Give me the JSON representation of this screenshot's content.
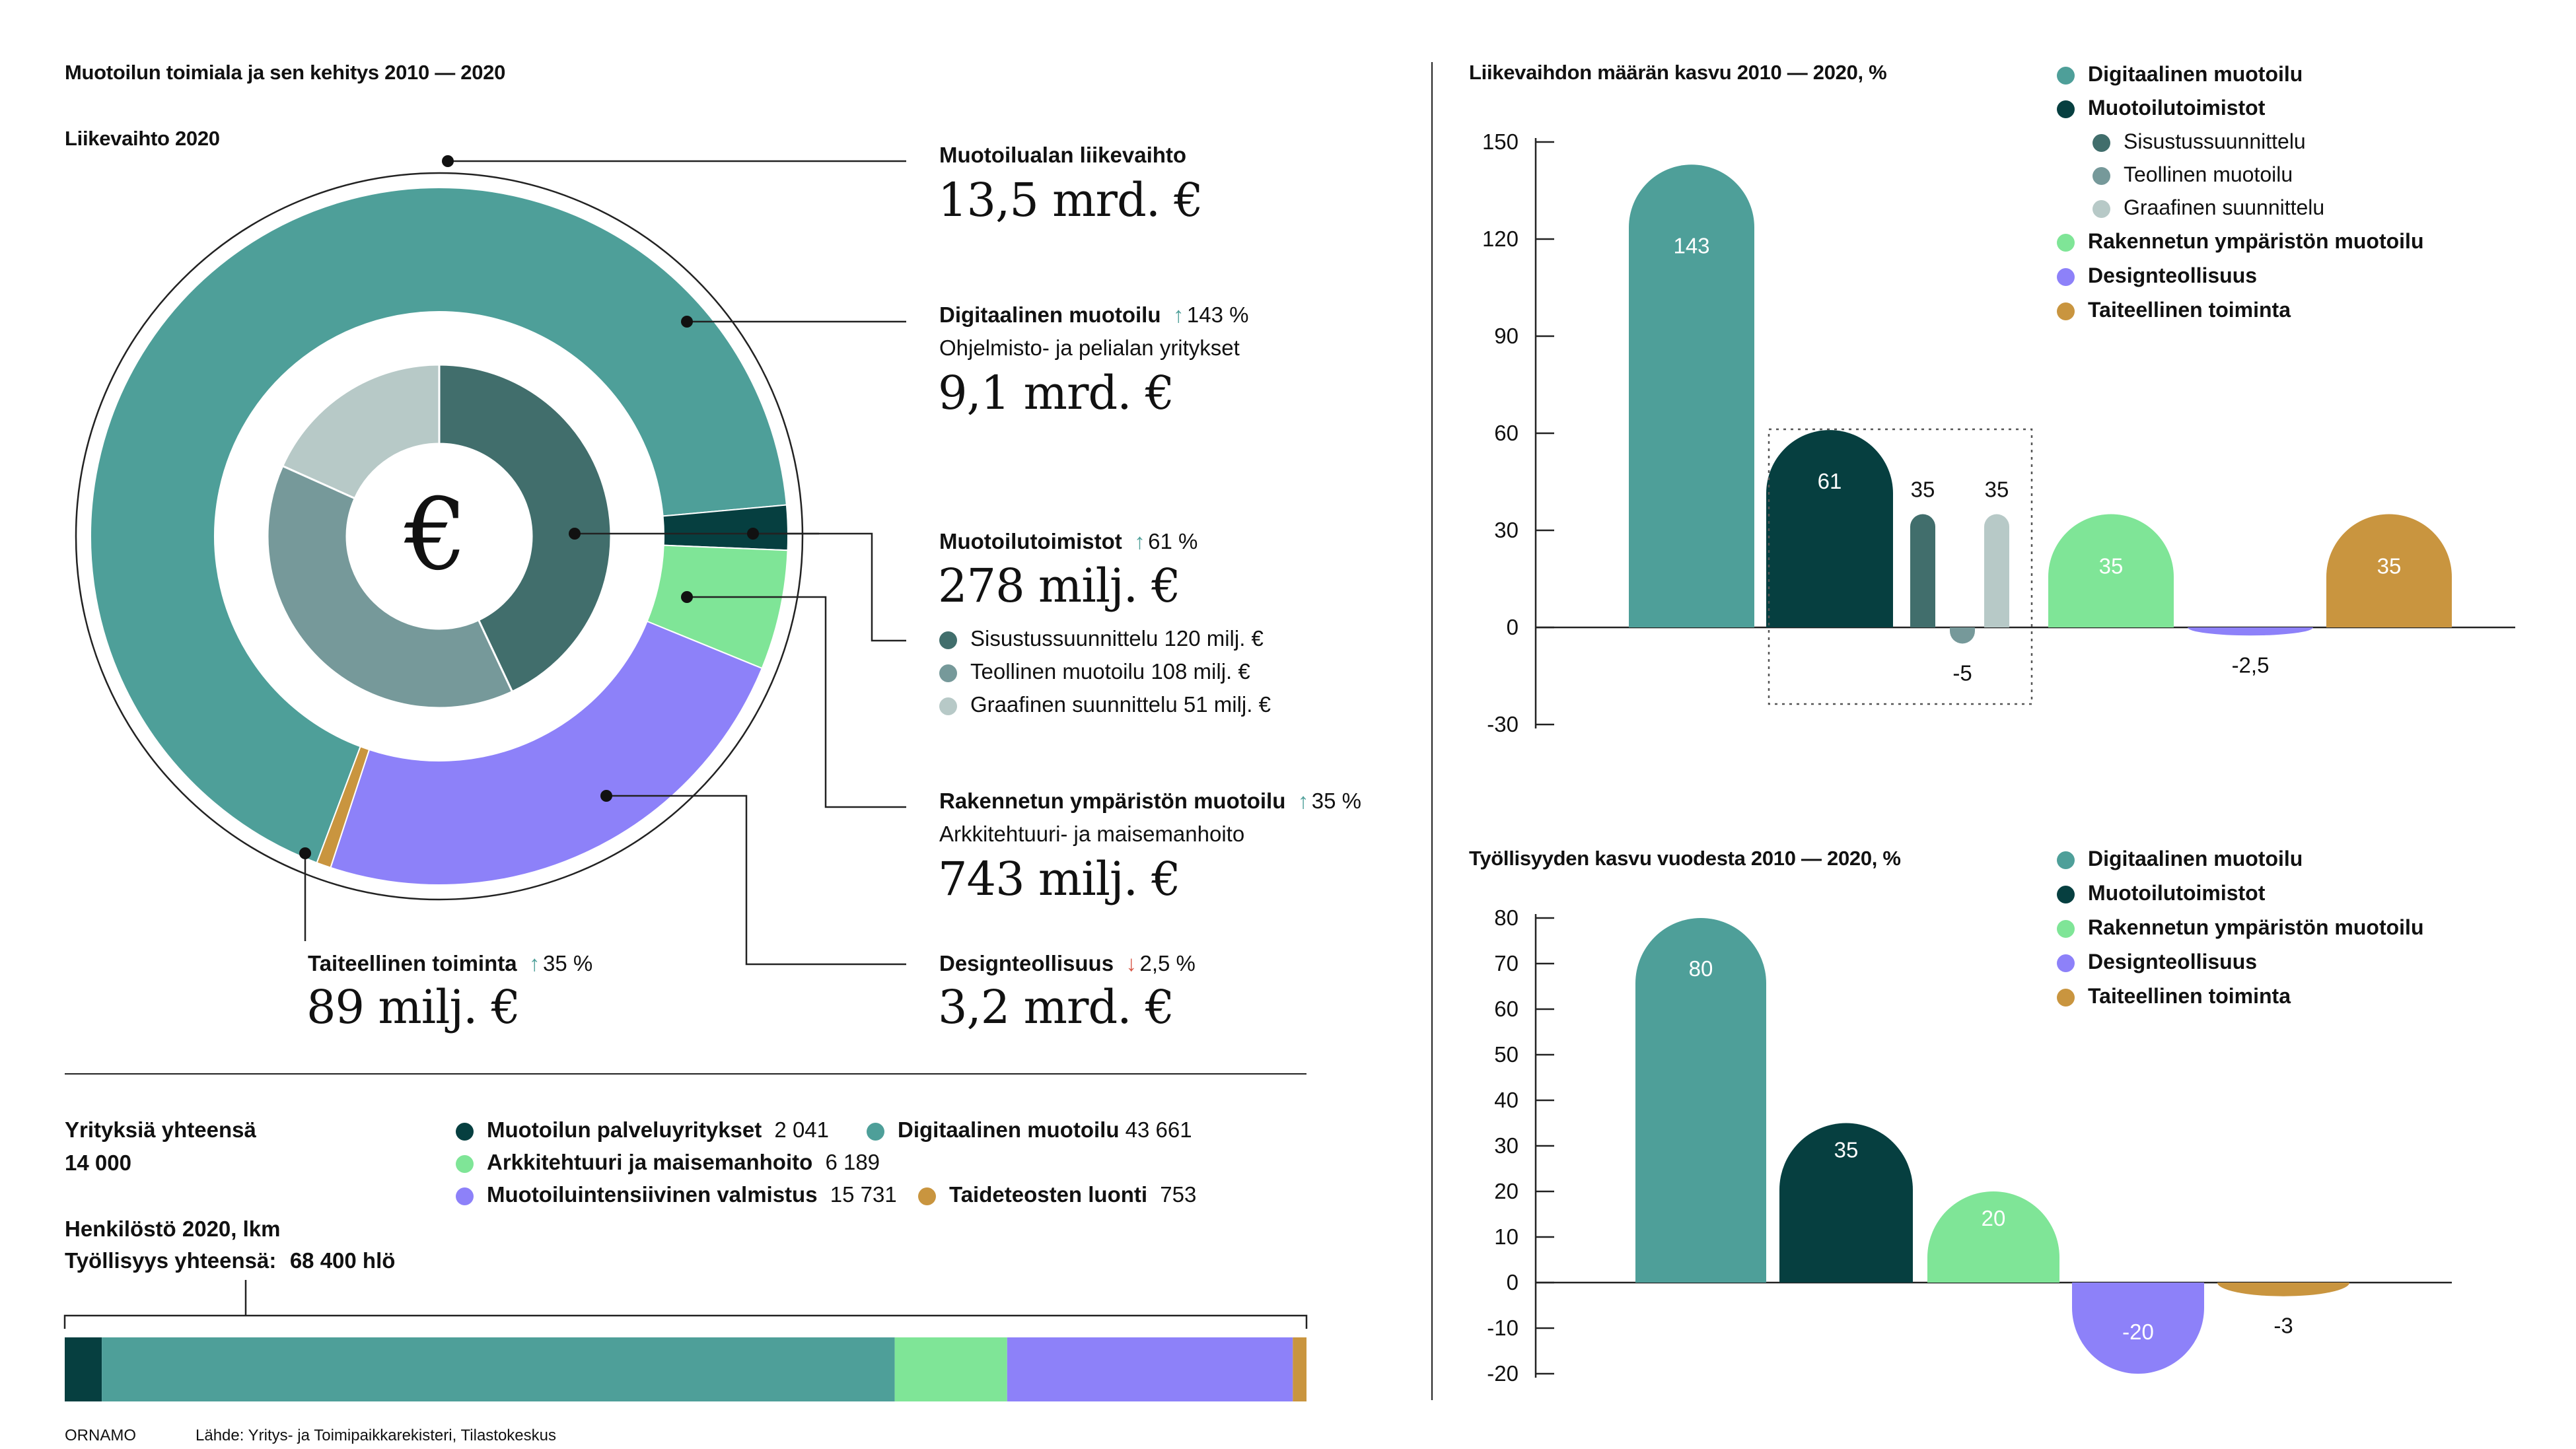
{
  "colors": {
    "digital": "#4e9f99",
    "offices": "#063f40",
    "interior": "#416e6c",
    "industrial": "#76999a",
    "graphic": "#b7c9c7",
    "built": "#7fe597",
    "industry": "#8d81f9",
    "artistic": "#c9953f"
  },
  "header": {
    "title": "Muotoilun toimiala ja sen kehitys  2010 — 2020",
    "subtitle": "Liikevaihto 2020"
  },
  "donut": {
    "center_symbol": "€",
    "total_label": "Muotoilualan liikevaihto",
    "total_value": "13,5 mrd. €",
    "digital": {
      "label": "Digitaalinen muotoilu",
      "arrow": "↑",
      "change": "143 %",
      "desc": "Ohjelmisto- ja pelialan yritykset",
      "value": "9,1 mrd. €"
    },
    "offices": {
      "label": "Muotoilutoimistot",
      "arrow": "↑",
      "change": "61 %",
      "value": "278 milj. €",
      "breakdown": [
        {
          "label": "Sisustussuunnittelu 120 milj. €"
        },
        {
          "label": "Teollinen muotoilu 108 milj. €"
        },
        {
          "label": "Graafinen suunnittelu 51 milj. €"
        }
      ]
    },
    "built": {
      "label": "Rakennetun ympäristön muotoilu",
      "arrow": "↑",
      "change": "35 %",
      "desc": "Arkkitehtuuri- ja maisemanhoito",
      "value": "743 milj. €"
    },
    "industry": {
      "label": "Designteollisuus",
      "arrow": "↓",
      "change": "2,5 %",
      "value": "3,2 mrd. €"
    },
    "artistic": {
      "label": "Taiteellinen toiminta",
      "arrow": "↑",
      "change": "35 %",
      "value": "89 milj. €"
    }
  },
  "companies": {
    "label": "Yrityksiä yhteensä",
    "value": "14 000",
    "legend": [
      {
        "name": "Muotoilun palveluyritykset",
        "value": "2 041"
      },
      {
        "name": "Digitaalinen muotoilu",
        "value": "43 661"
      },
      {
        "name": "Arkkitehtuuri ja maisemanhoito",
        "value": "6 189"
      },
      {
        "name": "Muotoiluintensiivinen valmistus",
        "value": "15 731"
      },
      {
        "name": "Taideteosten luonti",
        "value": "753"
      }
    ]
  },
  "staff": {
    "label": "Henkilöstö 2020, lkm",
    "total_label": "Työllisyys yhteensä:",
    "total_value": "68 400 hlö",
    "bar_shares": [
      2041,
      43661,
      6189,
      15731,
      753
    ]
  },
  "footer": {
    "brand": "ORNAMO",
    "source": "Lähde: Yritys- ja Toimipaikkarekisteri, Tilastokeskus"
  },
  "chart_data": [
    {
      "type": "pie",
      "title": "Liikevaihto 2020",
      "outer_ring": [
        {
          "name": "Digitaalinen muotoilu",
          "value": 9.1
        },
        {
          "name": "Muotoilutoimistot",
          "value": 0.278
        },
        {
          "name": "Rakennetun ympäristön muotoilu",
          "value": 0.743
        },
        {
          "name": "Designteollisuus",
          "value": 3.2
        },
        {
          "name": "Taiteellinen toiminta",
          "value": 0.089
        }
      ],
      "inner_ring": [
        {
          "name": "Sisustussuunnittelu",
          "value": 120
        },
        {
          "name": "Teollinen muotoilu",
          "value": 108
        },
        {
          "name": "Graafinen suunnittelu",
          "value": 51
        }
      ]
    },
    {
      "type": "bar",
      "title": "Liikevaihdon määrän kasvu  2010 — 2020, %",
      "ylim": [
        -30,
        150
      ],
      "yticks": [
        150,
        120,
        90,
        60,
        30,
        0,
        -30
      ],
      "legend": [
        {
          "name": "Digitaalinen muotoilu",
          "level": 0
        },
        {
          "name": "Muotoilutoimistot",
          "level": 0
        },
        {
          "name": "Sisustussuunnittelu",
          "level": 1
        },
        {
          "name": "Teollinen muotoilu",
          "level": 1
        },
        {
          "name": "Graafinen suunnittelu",
          "level": 1
        },
        {
          "name": "Rakennetun ympäristön muotoilu",
          "level": 0
        },
        {
          "name": "Designteollisuus",
          "level": 0
        },
        {
          "name": "Taiteellinen toiminta",
          "level": 0
        }
      ],
      "bars": [
        {
          "name": "Digitaalinen muotoilu",
          "value": 143,
          "label": "143"
        },
        {
          "name": "Muotoilutoimistot",
          "value": 61,
          "label": "61"
        },
        {
          "name": "Sisustussuunnittelu",
          "value": 35,
          "label": "35"
        },
        {
          "name": "Teollinen muotoilu",
          "value": -5,
          "label": "-5"
        },
        {
          "name": "Graafinen suunnittelu",
          "value": 35,
          "label": "35"
        },
        {
          "name": "Rakennetun ympäristön muotoilu",
          "value": 35,
          "label": "35"
        },
        {
          "name": "Designteollisuus",
          "value": -2.5,
          "label": "-2,5"
        },
        {
          "name": "Taiteellinen toiminta",
          "value": 35,
          "label": "35"
        }
      ]
    },
    {
      "type": "bar",
      "title": "Työllisyyden kasvu vuodesta  2010 — 2020, %",
      "ylim": [
        -20,
        80
      ],
      "yticks": [
        80,
        70,
        60,
        50,
        40,
        30,
        20,
        10,
        0,
        -10,
        -20
      ],
      "legend": [
        {
          "name": "Digitaalinen muotoilu"
        },
        {
          "name": "Muotoilutoimistot"
        },
        {
          "name": "Rakennetun ympäristön muotoilu"
        },
        {
          "name": "Designteollisuus"
        },
        {
          "name": "Taiteellinen toiminta"
        }
      ],
      "bars": [
        {
          "name": "Digitaalinen muotoilu",
          "value": 80,
          "label": "80"
        },
        {
          "name": "Muotoilutoimistot",
          "value": 35,
          "label": "35"
        },
        {
          "name": "Rakennetun ympäristön muotoilu",
          "value": 20,
          "label": "20"
        },
        {
          "name": "Designteollisuus",
          "value": -20,
          "label": "-20"
        },
        {
          "name": "Taiteellinen toiminta",
          "value": -3,
          "label": "-3"
        }
      ]
    }
  ]
}
